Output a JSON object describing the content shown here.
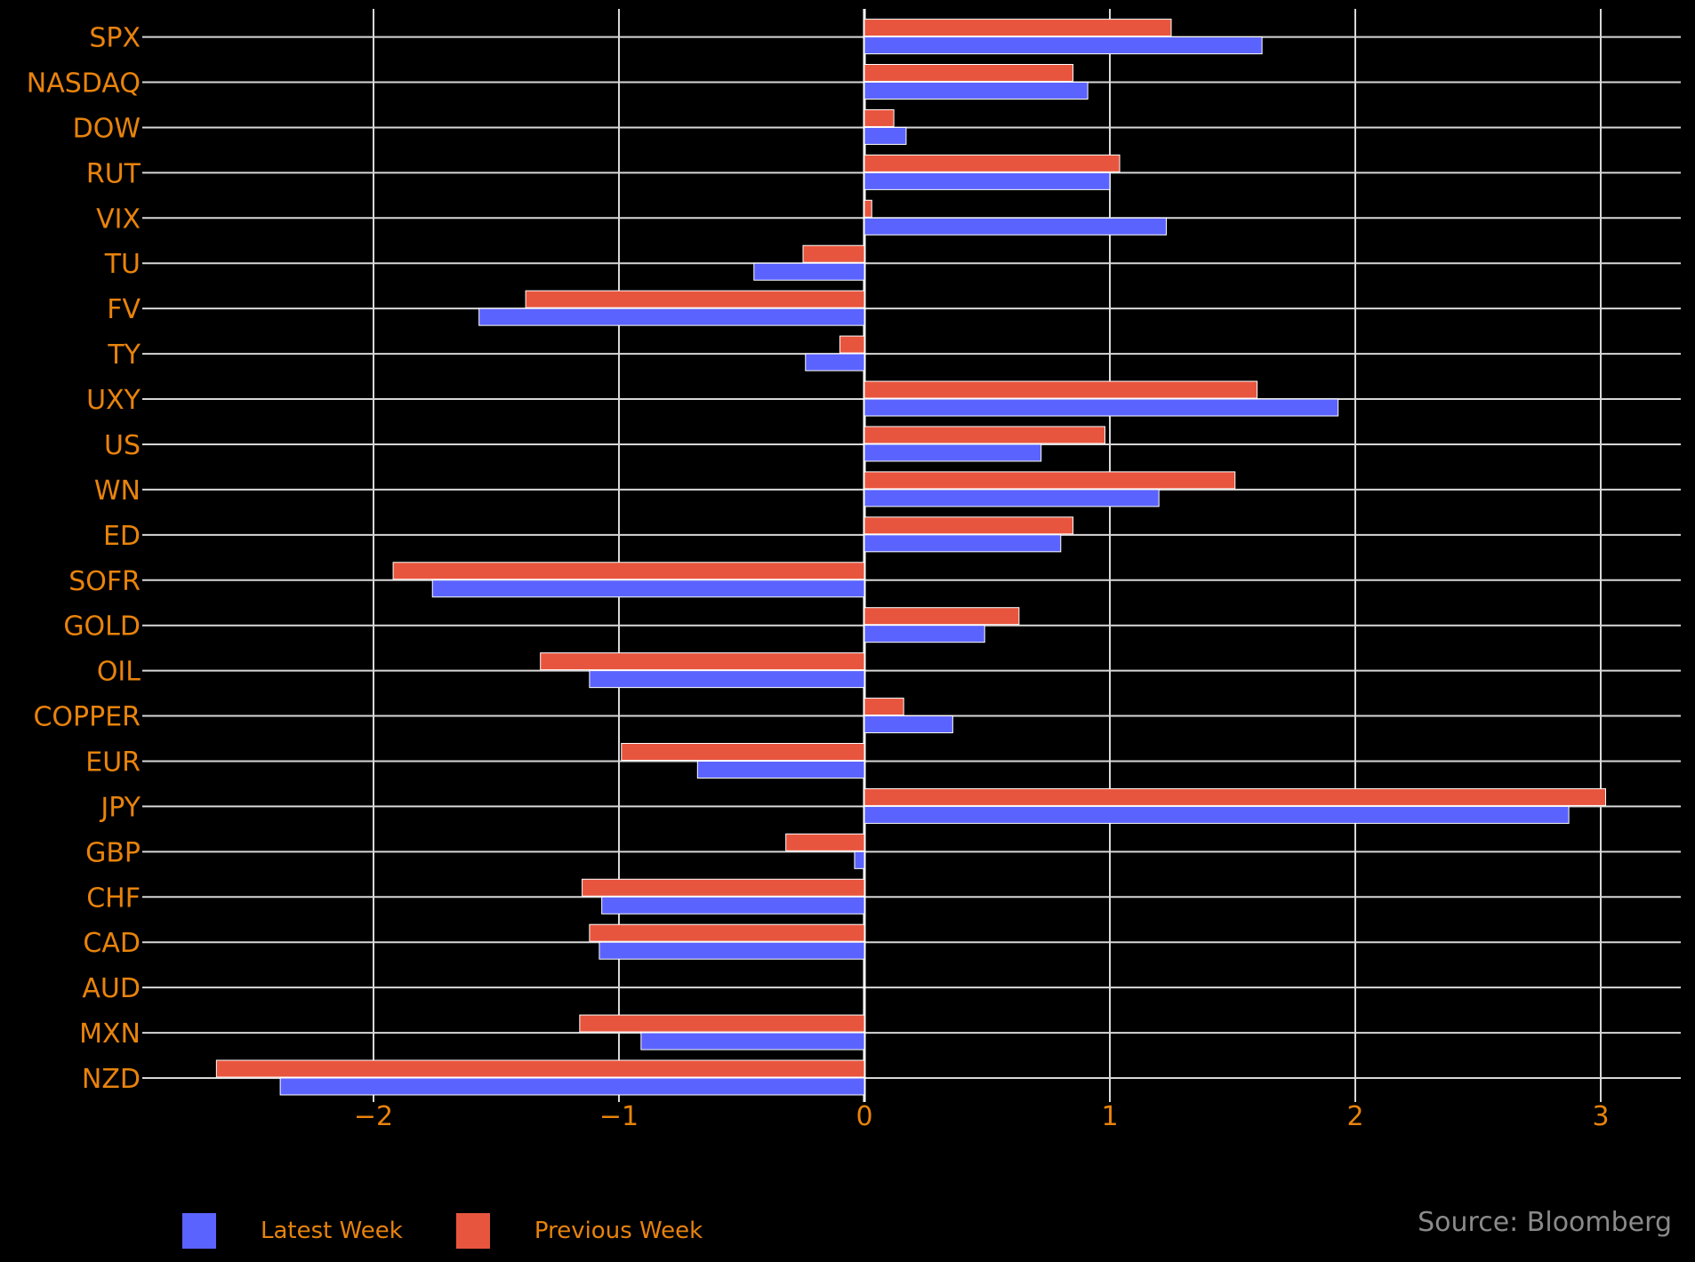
{
  "chart_data": {
    "type": "bar",
    "orientation": "horizontal",
    "categories": [
      "SPX",
      "NASDAQ",
      "DOW",
      "RUT",
      "VIX",
      "TU",
      "FV",
      "TY",
      "UXY",
      "US",
      "WN",
      "ED",
      "SOFR",
      "GOLD",
      "OIL",
      "COPPER",
      "EUR",
      "JPY",
      "GBP",
      "CHF",
      "CAD",
      "AUD",
      "MXN",
      "NZD"
    ],
    "series": [
      {
        "name": "Latest Week",
        "color": "#5B63FF",
        "values": [
          1.62,
          0.91,
          0.17,
          1.0,
          1.23,
          -0.45,
          -1.57,
          -0.24,
          1.93,
          0.72,
          1.2,
          0.8,
          -1.76,
          0.49,
          -1.12,
          0.36,
          -0.68,
          2.87,
          -0.04,
          -1.07,
          -1.08,
          0.0,
          -0.91,
          -2.38
        ]
      },
      {
        "name": "Previous Week",
        "color": "#E8553E",
        "values": [
          1.25,
          0.85,
          0.12,
          1.04,
          0.03,
          -0.25,
          -1.38,
          -0.1,
          1.6,
          0.98,
          1.51,
          0.85,
          -1.92,
          0.63,
          -1.32,
          0.16,
          -0.99,
          3.02,
          -0.32,
          -1.15,
          -1.12,
          0.0,
          -1.16,
          -2.64
        ]
      }
    ],
    "xticks": [
      -2,
      -1,
      0,
      1,
      2,
      3
    ],
    "xtick_labels": [
      "−2",
      "−1",
      "0",
      "1",
      "2",
      "3"
    ],
    "xlim": [
      -2.9,
      3.3
    ],
    "grid": true,
    "legend_position": "bottom-left",
    "title": "",
    "xlabel": "",
    "ylabel": ""
  },
  "legend": {
    "latest_label": "Latest Week",
    "previous_label": "Previous Week",
    "latest_color": "#5B63FF",
    "previous_color": "#E8553E"
  },
  "source_text": "Source: Bloomberg"
}
